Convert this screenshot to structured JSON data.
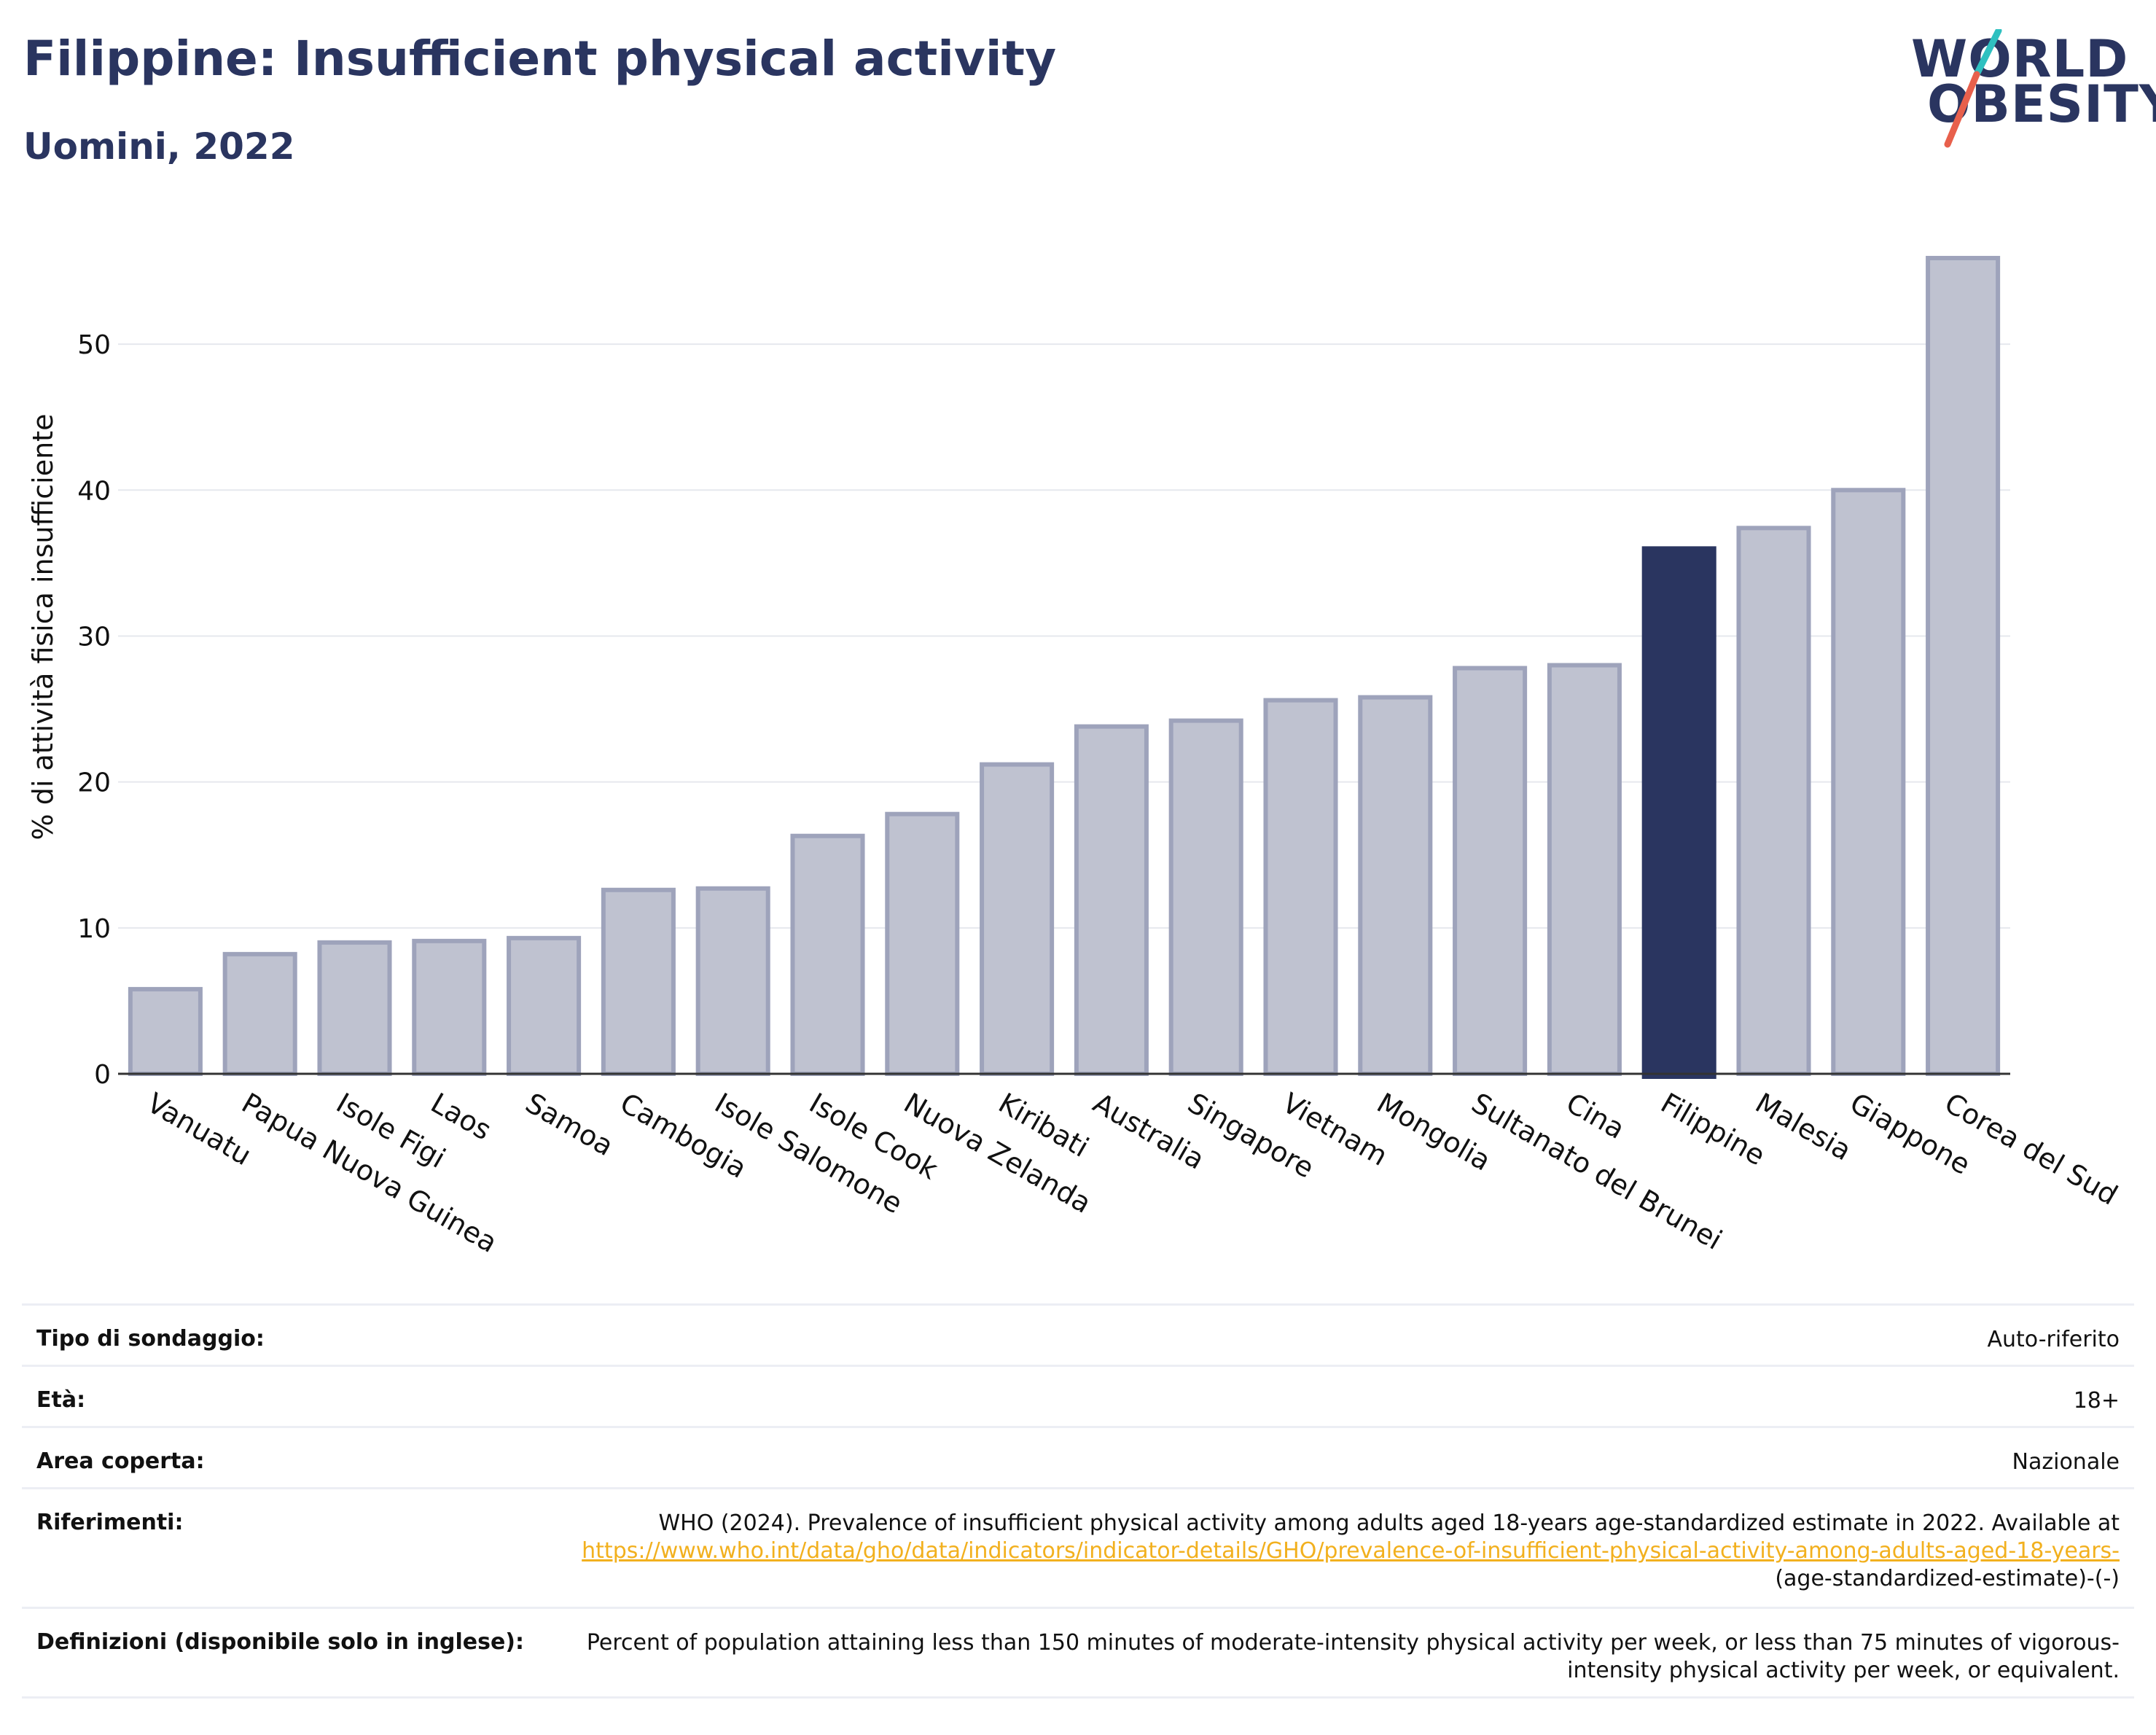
{
  "header": {
    "title": "Filippine: Insufficient physical activity",
    "subtitle": "Uomini, 2022"
  },
  "logo": {
    "line1": "WORLD",
    "line2": "OBESITY",
    "accent_colors": [
      "#2fc0c0",
      "#e8604c"
    ]
  },
  "colors": {
    "highlight_bar": "#2a3560",
    "other_bar_fill": "#bfc2d0",
    "other_bar_stroke": "#9ea3bb",
    "title": "#2a3560",
    "link": "#f2b01e"
  },
  "chart_data": {
    "type": "bar",
    "title": "Filippine: Insufficient physical activity",
    "subtitle": "Uomini, 2022",
    "ylabel": "% di attività fisica insufficiente",
    "xlabel": "",
    "ylim": [
      0,
      57
    ],
    "yticks": [
      0,
      10,
      20,
      30,
      40,
      50
    ],
    "grid": true,
    "highlight": "Filippine",
    "categories": [
      "Vanuatu",
      "Papua Nuova Guinea",
      "Isole Figi",
      "Laos",
      "Samoa",
      "Cambogia",
      "Isole Salomone",
      "Isole Cook",
      "Nuova Zelanda",
      "Kiribati",
      "Australia",
      "Singapore",
      "Vietnam",
      "Mongolia",
      "Sultanato del Brunei",
      "Cina",
      "Filippine",
      "Malesia",
      "Giappone",
      "Corea del Sud"
    ],
    "values": [
      5.8,
      8.2,
      9.0,
      9.1,
      9.3,
      12.6,
      12.7,
      16.3,
      17.8,
      21.2,
      23.8,
      24.2,
      25.6,
      25.8,
      27.8,
      28.0,
      36.0,
      37.4,
      40.0,
      55.9
    ]
  },
  "meta": {
    "survey_type_label": "Tipo di sondaggio:",
    "survey_type_value": "Auto-riferito",
    "age_label": "Età:",
    "age_value": "18+",
    "area_label": "Area coperta:",
    "area_value": "Nazionale",
    "references_label": "Riferimenti:",
    "references_text": "WHO (2024). Prevalence of insufficient physical activity among adults aged 18-years age-standardized estimate in 2022. Available at",
    "references_link": "https://www.who.int/data/gho/data/indicators/indicator-details/GHO/prevalence-of-insufficient-physical-activity-among-adults-aged-18-years-",
    "references_suffix": "(age-standardized-estimate)-(-)",
    "definitions_label": "Definizioni (disponibile solo in inglese):",
    "definitions_value": "Percent of population attaining less than 150 minutes of moderate-intensity physical activity per week, or less than 75 minutes of vigorous-intensity physical activity per week, or equivalent."
  }
}
